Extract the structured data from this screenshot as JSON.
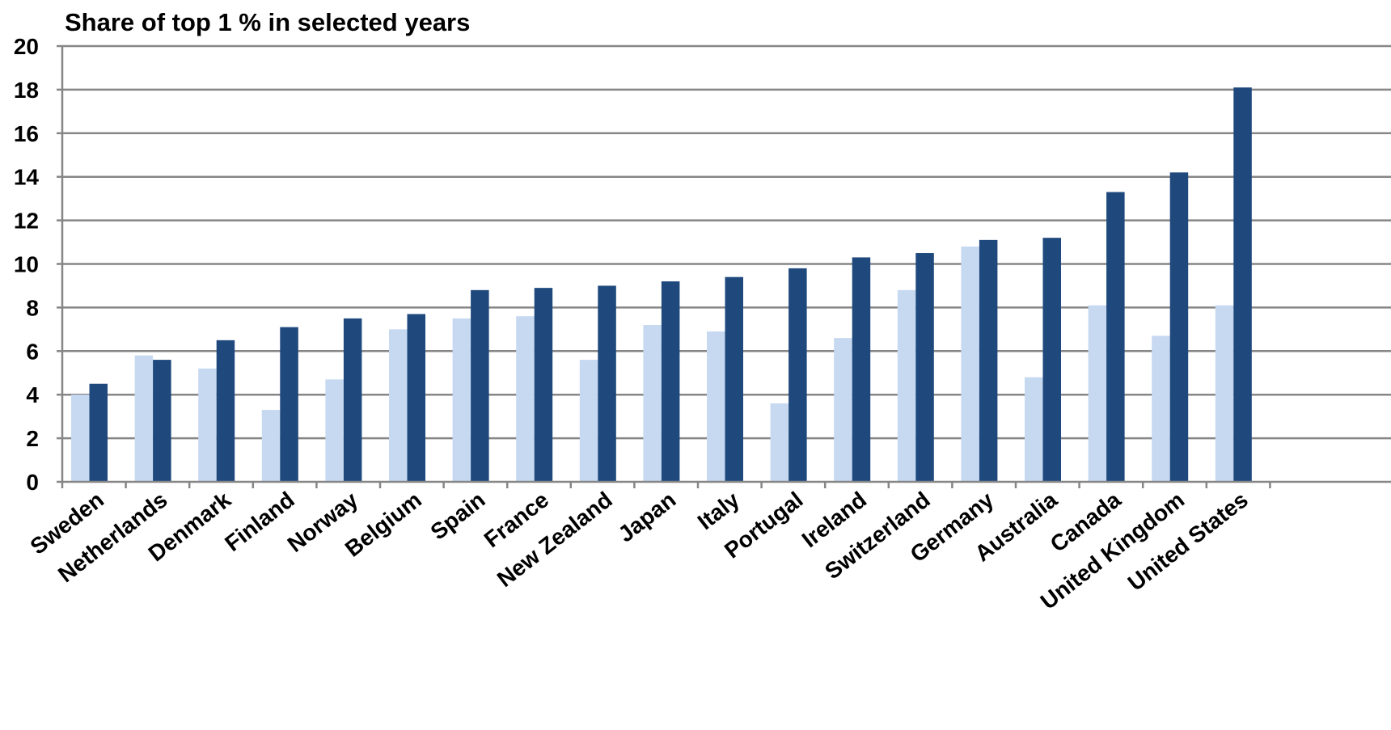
{
  "chart_data": {
    "type": "bar",
    "title": "Share of top 1 % in selected years",
    "xlabel": "",
    "ylabel": "",
    "ylim": [
      0,
      20
    ],
    "yticks": [
      "0",
      "2",
      "4",
      "6",
      "8",
      "10",
      "12",
      "14",
      "16",
      "18",
      "20"
    ],
    "grid": true,
    "legend": "none",
    "categories": [
      "Sweden",
      "Netherlands",
      "Denmark",
      "Finland",
      "Norway",
      "Belgium",
      "Spain",
      "France",
      "New Zealand",
      "Japan",
      "Italy",
      "Portugal",
      "Ireland",
      "Switzerland",
      "Germany",
      "Australia",
      "Canada",
      "United Kingdom",
      "United States"
    ],
    "series": [
      {
        "color": "#c6d9f1",
        "values": [
          4.0,
          5.8,
          5.2,
          3.3,
          4.7,
          7.0,
          7.5,
          7.6,
          5.6,
          7.2,
          6.9,
          3.6,
          6.6,
          8.8,
          10.8,
          4.8,
          8.1,
          6.7,
          8.1
        ]
      },
      {
        "color": "#1f497d",
        "values": [
          4.5,
          5.6,
          6.5,
          7.1,
          7.5,
          7.7,
          8.8,
          8.9,
          9.0,
          9.2,
          9.4,
          9.8,
          10.3,
          10.5,
          11.1,
          11.2,
          13.3,
          14.2,
          18.1
        ]
      }
    ]
  },
  "colors": {
    "grid": "#868686",
    "axis": "#868686"
  }
}
